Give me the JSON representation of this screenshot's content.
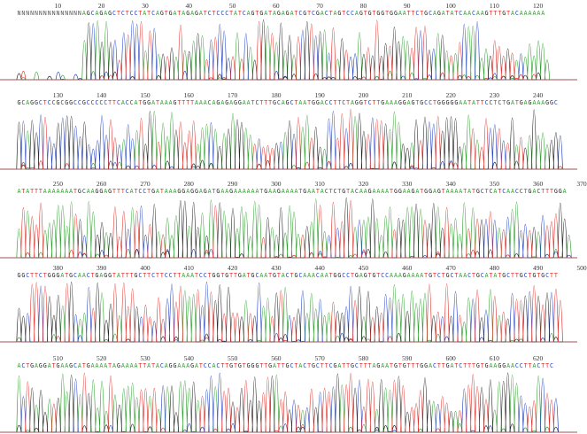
{
  "colors": {
    "A": "#2ca02c",
    "C": "#1f3fbf",
    "G": "#222222",
    "T": "#e0302a",
    "N": "#555555",
    "background": "#ffffff"
  },
  "rows": [
    {
      "sequence": "NNNNNNNNNNNNNNNAGCAGAGCTCTCCTATCAGTGATAGAGATCTCCCTATCAGTGATAGAGATCGTCGACTAGTCCAGTGTGGTGGAATTCTGCAGATATCAACAAGTTTGTACAAAAAA",
      "labels": [
        "10",
        "20",
        "30",
        "40",
        "50",
        "60",
        "70",
        "80",
        "90",
        "100",
        "110",
        "120"
      ]
    },
    {
      "sequence": "GCAGGCTCCGCGGCCGCCCCCTTCACCATGGATAAAGTTTTAAACAGAGAGGAATCTTTGCAGCTAATGGACCTTCTAGGTCTTGAAAGGAGTGCCTGGGGGAATATTCCTCTGATGAGAAAGGC",
      "labels": [
        "130",
        "140",
        "150",
        "160",
        "170",
        "180",
        "190",
        "200",
        "210",
        "220",
        "230",
        "240"
      ]
    },
    {
      "sequence": "ATATTTAAAAAAATGCAAGGAGTTTCATCCTGATAAAGGAGGAGATGAAGAAAAAATGAAGAAAATGAATACTCTGTACAAGAAAATGGAAGATGGAGTAAAATATGCTCATCAACCTGACTTTGGA",
      "labels": [
        "250",
        "260",
        "270",
        "280",
        "290",
        "300",
        "310",
        "320",
        "330",
        "340",
        "350",
        "360",
        "370"
      ]
    },
    {
      "sequence": "GGCTTCTGGGATGCAACTGAGGTATTTGCTTCTTCCTTAAATCCTGGTGTTGATGCAATGTACTGCAAACAATGGCCTGAGTGTCCAAAGAAAATGTCTGCTAACTGCATATGCTTGCTGTGCTT",
      "labels": [
        "380",
        "390",
        "400",
        "410",
        "420",
        "430",
        "440",
        "450",
        "460",
        "470",
        "480",
        "490",
        "500"
      ]
    },
    {
      "sequence": "ACTGAGGATGAAGCATGAAAATAGAAAATTATACAGGAAAGATCCACTTGTGTGGGTTGATTGCTACTGCTTCGATTGCTTTAGAATGTGTTTGGACTTGATCTTTGTGAAGGAACCTTACTTC",
      "labels": [
        "510",
        "520",
        "530",
        "540",
        "550",
        "560",
        "570",
        "580",
        "590",
        "600",
        "610",
        "620"
      ]
    }
  ]
}
